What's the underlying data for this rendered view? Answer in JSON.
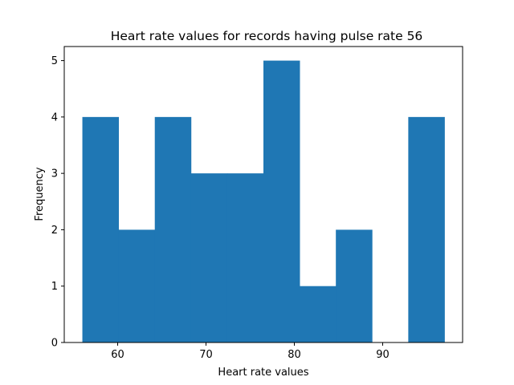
{
  "chart_data": {
    "type": "bar",
    "subtype": "histogram",
    "title": "Heart rate values for records having pulse rate 56",
    "xlabel": "Heart rate values",
    "ylabel": "Frequency",
    "bin_edges": [
      56,
      60.1,
      64.2,
      68.3,
      72.4,
      76.5,
      80.6,
      84.7,
      88.8,
      92.9,
      97
    ],
    "values": [
      4,
      2,
      4,
      3,
      3,
      5,
      1,
      2,
      0,
      4
    ],
    "xlim": [
      53.95,
      99.05
    ],
    "ylim": [
      0,
      5.25
    ],
    "xticks": [
      60,
      70,
      80,
      90
    ],
    "yticks": [
      0,
      1,
      2,
      3,
      4,
      5
    ],
    "bar_color": "#1f77b4",
    "grid": false,
    "legend": "none"
  }
}
